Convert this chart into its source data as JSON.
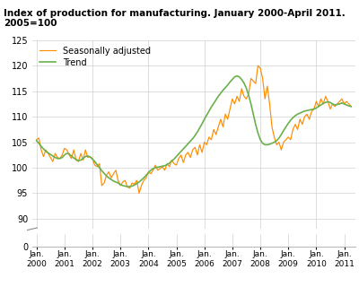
{
  "title": "Index of production for manufacturing. January 2000-April 2011.\n2005=100",
  "line_seasonally_adjusted": "Seasonally adjusted",
  "line_trend": "Trend",
  "color_sa": "#FF8C00",
  "color_trend": "#6AB04C",
  "ylim_main": [
    88,
    125
  ],
  "ylim_break": [
    0,
    2
  ],
  "yticks_main": [
    90,
    95,
    100,
    105,
    110,
    115,
    120,
    125
  ],
  "ytick_break": [
    0
  ],
  "x_tick_labels": [
    "Jan.\n2000",
    "Jan.\n2001",
    "Jan.\n2002",
    "Jan.\n2003",
    "Jan.\n2004",
    "Jan.\n2005",
    "Jan.\n2006",
    "Jan.\n2007",
    "Jan.\n2008",
    "Jan.\n2009",
    "Jan.\n2010",
    "Jan.\n2011"
  ],
  "sa_values": [
    105.5,
    105.8,
    103.5,
    102.2,
    103.5,
    102.8,
    102.0,
    101.2,
    102.8,
    102.0,
    101.8,
    102.5,
    103.8,
    103.5,
    102.5,
    101.8,
    103.5,
    101.5,
    101.2,
    102.8,
    101.5,
    103.5,
    102.0,
    102.2,
    101.8,
    100.5,
    100.2,
    100.8,
    96.5,
    97.0,
    98.5,
    99.2,
    98.0,
    98.8,
    99.5,
    97.5,
    96.5,
    97.2,
    97.5,
    96.2,
    96.0,
    97.0,
    96.8,
    97.5,
    95.0,
    96.5,
    97.5,
    98.0,
    99.2,
    98.8,
    99.5,
    100.5,
    99.5,
    99.8,
    100.2,
    99.5,
    100.8,
    100.2,
    101.5,
    100.8,
    100.5,
    101.8,
    102.5,
    101.0,
    102.5,
    103.0,
    102.0,
    103.5,
    104.0,
    102.5,
    104.5,
    103.0,
    105.0,
    104.5,
    106.0,
    105.5,
    107.5,
    106.5,
    108.0,
    109.5,
    108.0,
    110.5,
    109.5,
    111.5,
    113.5,
    112.5,
    114.0,
    113.0,
    115.5,
    114.0,
    113.5,
    114.5,
    117.5,
    117.0,
    116.5,
    120.0,
    119.5,
    117.5,
    113.5,
    116.0,
    112.5,
    108.0,
    106.0,
    104.5,
    105.0,
    103.5,
    105.0,
    105.5,
    106.0,
    105.5,
    107.5,
    108.5,
    107.5,
    109.5,
    108.5,
    110.0,
    110.5,
    109.5,
    111.0,
    111.5,
    113.0,
    112.0,
    113.5,
    112.5,
    114.0,
    113.0,
    111.5,
    112.5,
    112.0,
    112.5,
    113.0,
    113.5,
    112.5,
    113.0,
    112.5,
    112.0
  ],
  "trend_values": [
    105.3,
    104.8,
    104.2,
    103.7,
    103.2,
    102.9,
    102.6,
    102.3,
    102.0,
    101.8,
    101.8,
    102.0,
    102.5,
    102.8,
    102.7,
    102.3,
    101.9,
    101.6,
    101.4,
    101.5,
    101.8,
    102.2,
    102.3,
    102.1,
    101.7,
    101.2,
    100.6,
    100.0,
    99.4,
    98.9,
    98.4,
    98.0,
    97.7,
    97.4,
    97.2,
    97.0,
    96.7,
    96.5,
    96.4,
    96.3,
    96.3,
    96.4,
    96.6,
    96.9,
    97.2,
    97.6,
    98.0,
    98.5,
    99.0,
    99.5,
    99.8,
    100.0,
    100.1,
    100.2,
    100.3,
    100.4,
    100.6,
    100.9,
    101.3,
    101.7,
    102.2,
    102.7,
    103.2,
    103.7,
    104.2,
    104.7,
    105.2,
    105.7,
    106.3,
    107.0,
    107.8,
    108.6,
    109.5,
    110.3,
    111.1,
    111.9,
    112.6,
    113.3,
    114.0,
    114.6,
    115.2,
    115.7,
    116.2,
    116.8,
    117.3,
    117.8,
    118.0,
    117.8,
    117.3,
    116.6,
    115.6,
    114.2,
    112.5,
    110.5,
    108.5,
    106.8,
    105.5,
    104.8,
    104.5,
    104.5,
    104.6,
    104.8,
    105.0,
    105.3,
    105.8,
    106.5,
    107.3,
    108.0,
    108.7,
    109.3,
    109.8,
    110.2,
    110.5,
    110.7,
    110.9,
    111.1,
    111.2,
    111.3,
    111.4,
    111.5,
    111.7,
    112.0,
    112.3,
    112.6,
    112.8,
    112.9,
    112.8,
    112.5,
    112.3,
    112.4,
    112.5,
    112.7,
    112.5,
    112.3,
    112.1,
    112.0
  ]
}
